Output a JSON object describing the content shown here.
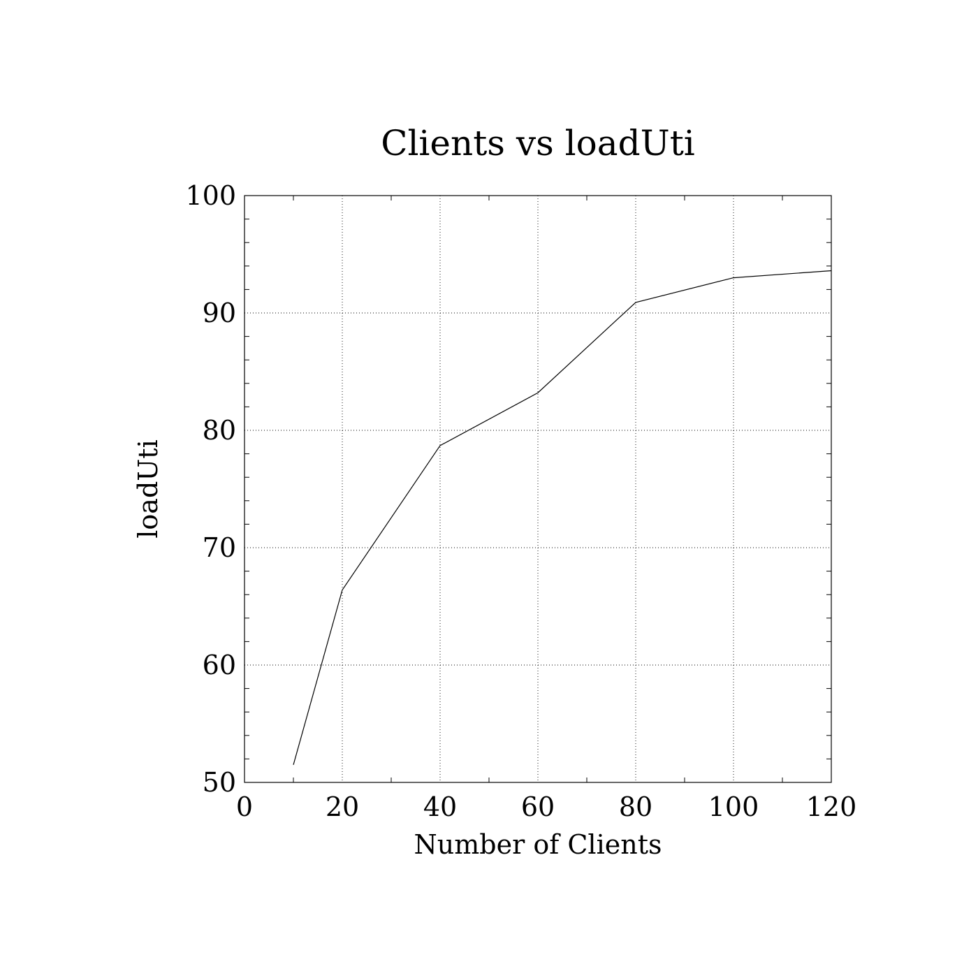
{
  "chart_data": {
    "type": "line",
    "title": "Clients vs loadUti",
    "xlabel": "Number of Clients",
    "ylabel": "loadUti",
    "xlim": [
      0,
      120
    ],
    "ylim": [
      50,
      100
    ],
    "x_ticks": [
      0,
      20,
      40,
      60,
      80,
      100,
      120
    ],
    "y_ticks": [
      50,
      60,
      70,
      80,
      90,
      100
    ],
    "grid": true,
    "legend": "none",
    "series": [
      {
        "x": [
          10,
          20,
          40,
          60,
          80,
          100,
          120
        ],
        "y": [
          51.5,
          66.4,
          78.7,
          83.2,
          90.9,
          93.0,
          93.6
        ],
        "color": "#000000"
      }
    ]
  }
}
